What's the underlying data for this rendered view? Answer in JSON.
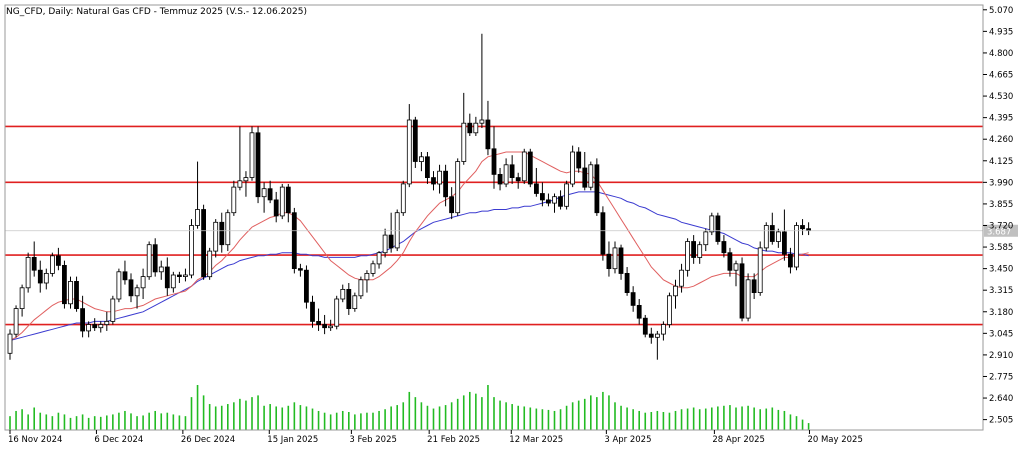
{
  "window_title": "NG_CFD, Daily:  Natural Gas CFD - Temmuz 2025 (V.S.- 12.06.2025)",
  "current_price_label": "3.687",
  "colors": {
    "background": "#ffffff",
    "frame": "#9a9a9a",
    "candle_body_up": "#ffffff",
    "candle_body_down": "#000000",
    "candle_outline": "#000000",
    "ma_fast": "#e06060",
    "ma_slow": "#3b3bd0",
    "levels": "#e02020",
    "volume": "#22bb22",
    "price_line": "#c8c8c8",
    "price_tag_bg": "#c0c0c0",
    "text": "#000000"
  },
  "chart_data": {
    "type": "candlestick",
    "symbol": "NG_CFD",
    "timeframe": "Daily",
    "ylim": [
      2.44,
      5.1
    ],
    "y_ticks": [
      "5.070",
      "4.935",
      "4.800",
      "4.665",
      "4.530",
      "4.395",
      "4.260",
      "4.125",
      "3.990",
      "3.855",
      "3.720",
      "3.585",
      "3.450",
      "3.315",
      "3.180",
      "3.045",
      "2.910",
      "2.775",
      "2.640",
      "2.505"
    ],
    "x_tick_labels": [
      {
        "label": "16 Nov 2024",
        "date": "2024-11-16"
      },
      {
        "label": "6 Dec 2024",
        "date": "2024-12-06"
      },
      {
        "label": "26 Dec 2024",
        "date": "2024-12-26"
      },
      {
        "label": "15 Jan 2025",
        "date": "2025-01-15"
      },
      {
        "label": "3 Feb 2025",
        "date": "2025-02-03"
      },
      {
        "label": "21 Feb 2025",
        "date": "2025-02-21"
      },
      {
        "label": "12 Mar 2025",
        "date": "2025-03-12"
      },
      {
        "label": "3 Apr 2025",
        "date": "2025-04-03"
      },
      {
        "label": "28 Apr 2025",
        "date": "2025-04-28"
      },
      {
        "label": "20 May 2025",
        "date": "2025-05-20"
      }
    ],
    "horizontal_levels": [
      4.34,
      3.99,
      3.535,
      3.1
    ],
    "current_price": 3.687,
    "ohlc": [
      [
        2.92,
        3.07,
        2.88,
        3.04
      ],
      [
        3.04,
        3.22,
        3.02,
        3.2
      ],
      [
        3.2,
        3.35,
        3.15,
        3.33
      ],
      [
        3.33,
        3.55,
        3.3,
        3.52
      ],
      [
        3.52,
        3.62,
        3.4,
        3.44
      ],
      [
        3.44,
        3.5,
        3.3,
        3.36
      ],
      [
        3.36,
        3.45,
        3.32,
        3.42
      ],
      [
        3.42,
        3.55,
        3.4,
        3.53
      ],
      [
        3.53,
        3.58,
        3.44,
        3.47
      ],
      [
        3.47,
        3.5,
        3.2,
        3.23
      ],
      [
        3.23,
        3.4,
        3.2,
        3.37
      ],
      [
        3.37,
        3.4,
        3.18,
        3.2
      ],
      [
        3.2,
        3.28,
        3.02,
        3.06
      ],
      [
        3.06,
        3.12,
        3.02,
        3.1
      ],
      [
        3.1,
        3.14,
        3.06,
        3.08
      ],
      [
        3.08,
        3.12,
        3.05,
        3.1
      ],
      [
        3.1,
        3.18,
        3.06,
        3.12
      ],
      [
        3.12,
        3.28,
        3.1,
        3.26
      ],
      [
        3.26,
        3.45,
        3.24,
        3.43
      ],
      [
        3.43,
        3.5,
        3.35,
        3.38
      ],
      [
        3.38,
        3.42,
        3.24,
        3.28
      ],
      [
        3.28,
        3.35,
        3.2,
        3.33
      ],
      [
        3.33,
        3.45,
        3.26,
        3.4
      ],
      [
        3.4,
        3.62,
        3.38,
        3.6
      ],
      [
        3.6,
        3.64,
        3.4,
        3.43
      ],
      [
        3.43,
        3.5,
        3.38,
        3.46
      ],
      [
        3.46,
        3.52,
        3.28,
        3.33
      ],
      [
        3.33,
        3.43,
        3.3,
        3.41
      ],
      [
        3.41,
        3.43,
        3.36,
        3.4
      ],
      [
        3.4,
        3.45,
        3.37,
        3.41
      ],
      [
        3.41,
        3.76,
        3.39,
        3.72
      ],
      [
        3.72,
        4.12,
        3.7,
        3.82
      ],
      [
        3.82,
        3.85,
        3.38,
        3.4
      ],
      [
        3.4,
        3.58,
        3.38,
        3.56
      ],
      [
        3.56,
        3.76,
        3.52,
        3.74
      ],
      [
        3.74,
        3.8,
        3.55,
        3.6
      ],
      [
        3.6,
        3.82,
        3.56,
        3.8
      ],
      [
        3.8,
        4.0,
        3.78,
        3.96
      ],
      [
        3.96,
        4.34,
        3.94,
        4.0
      ],
      [
        4.0,
        4.06,
        3.9,
        4.02
      ],
      [
        4.02,
        4.34,
        4.0,
        4.3
      ],
      [
        4.3,
        4.34,
        3.86,
        3.9
      ],
      [
        3.9,
        3.99,
        3.8,
        3.95
      ],
      [
        3.95,
        4.0,
        3.86,
        3.88
      ],
      [
        3.88,
        3.93,
        3.74,
        3.78
      ],
      [
        3.78,
        3.98,
        3.76,
        3.96
      ],
      [
        3.96,
        3.98,
        3.74,
        3.8
      ],
      [
        3.8,
        3.83,
        3.42,
        3.45
      ],
      [
        3.45,
        3.48,
        3.4,
        3.44
      ],
      [
        3.44,
        3.47,
        3.2,
        3.24
      ],
      [
        3.24,
        3.28,
        3.08,
        3.12
      ],
      [
        3.12,
        3.2,
        3.06,
        3.1
      ],
      [
        3.1,
        3.16,
        3.04,
        3.08
      ],
      [
        3.08,
        3.13,
        3.06,
        3.09
      ],
      [
        3.09,
        3.28,
        3.07,
        3.26
      ],
      [
        3.26,
        3.35,
        3.24,
        3.32
      ],
      [
        3.32,
        3.36,
        3.16,
        3.2
      ],
      [
        3.2,
        3.3,
        3.18,
        3.28
      ],
      [
        3.28,
        3.4,
        3.26,
        3.38
      ],
      [
        3.38,
        3.44,
        3.3,
        3.42
      ],
      [
        3.42,
        3.5,
        3.4,
        3.48
      ],
      [
        3.48,
        3.56,
        3.45,
        3.55
      ],
      [
        3.55,
        3.7,
        3.52,
        3.66
      ],
      [
        3.66,
        3.8,
        3.55,
        3.58
      ],
      [
        3.58,
        3.82,
        3.56,
        3.8
      ],
      [
        3.8,
        4.0,
        3.78,
        3.98
      ],
      [
        3.98,
        4.48,
        3.96,
        4.38
      ],
      [
        4.38,
        4.4,
        4.08,
        4.12
      ],
      [
        4.12,
        4.18,
        4.06,
        4.15
      ],
      [
        4.15,
        4.18,
        3.98,
        4.02
      ],
      [
        4.02,
        4.06,
        3.94,
        3.98
      ],
      [
        3.98,
        4.1,
        3.92,
        4.06
      ],
      [
        4.06,
        4.1,
        3.84,
        3.9
      ],
      [
        3.9,
        3.96,
        3.76,
        3.8
      ],
      [
        3.8,
        4.14,
        3.78,
        4.12
      ],
      [
        4.12,
        4.55,
        4.1,
        4.36
      ],
      [
        4.36,
        4.42,
        4.28,
        4.3
      ],
      [
        4.3,
        4.4,
        4.28,
        4.36
      ],
      [
        4.36,
        4.92,
        4.33,
        4.38
      ],
      [
        4.38,
        4.5,
        4.16,
        4.2
      ],
      [
        4.2,
        4.34,
        3.95,
        4.04
      ],
      [
        4.04,
        4.08,
        3.94,
        3.98
      ],
      [
        3.98,
        4.14,
        3.96,
        4.1
      ],
      [
        4.1,
        4.16,
        3.98,
        4.02
      ],
      [
        4.02,
        4.05,
        3.95,
        4.0
      ],
      [
        4.0,
        4.2,
        3.98,
        4.18
      ],
      [
        4.18,
        4.2,
        3.96,
        3.98
      ],
      [
        3.98,
        4.08,
        3.9,
        3.92
      ],
      [
        3.92,
        3.99,
        3.84,
        3.88
      ],
      [
        3.88,
        3.92,
        3.84,
        3.86
      ],
      [
        3.86,
        3.92,
        3.8,
        3.9
      ],
      [
        3.9,
        3.94,
        3.82,
        3.84
      ],
      [
        3.84,
        4.0,
        3.82,
        3.98
      ],
      [
        3.98,
        4.22,
        3.96,
        4.18
      ],
      [
        4.18,
        4.21,
        4.05,
        4.08
      ],
      [
        4.08,
        4.18,
        3.94,
        3.96
      ],
      [
        3.96,
        4.12,
        3.94,
        4.1
      ],
      [
        4.1,
        4.14,
        3.78,
        3.8
      ],
      [
        3.8,
        3.84,
        3.5,
        3.54
      ],
      [
        3.54,
        3.62,
        3.4,
        3.45
      ],
      [
        3.45,
        3.62,
        3.42,
        3.58
      ],
      [
        3.58,
        3.6,
        3.38,
        3.42
      ],
      [
        3.42,
        3.46,
        3.28,
        3.3
      ],
      [
        3.3,
        3.34,
        3.18,
        3.22
      ],
      [
        3.22,
        3.26,
        3.1,
        3.14
      ],
      [
        3.14,
        3.16,
        3.02,
        3.04
      ],
      [
        3.04,
        3.08,
        2.98,
        3.02
      ],
      [
        3.02,
        3.06,
        2.88,
        3.04
      ],
      [
        3.04,
        3.12,
        3.0,
        3.1
      ],
      [
        3.1,
        3.3,
        3.08,
        3.28
      ],
      [
        3.28,
        3.38,
        3.2,
        3.34
      ],
      [
        3.34,
        3.48,
        3.3,
        3.44
      ],
      [
        3.44,
        3.64,
        3.4,
        3.62
      ],
      [
        3.62,
        3.66,
        3.48,
        3.52
      ],
      [
        3.52,
        3.62,
        3.48,
        3.6
      ],
      [
        3.6,
        3.7,
        3.56,
        3.68
      ],
      [
        3.68,
        3.8,
        3.66,
        3.78
      ],
      [
        3.78,
        3.8,
        3.6,
        3.62
      ],
      [
        3.62,
        3.66,
        3.52,
        3.55
      ],
      [
        3.55,
        3.58,
        3.4,
        3.44
      ],
      [
        3.44,
        3.5,
        3.34,
        3.48
      ],
      [
        3.48,
        3.52,
        3.12,
        3.14
      ],
      [
        3.14,
        3.42,
        3.12,
        3.38
      ],
      [
        3.38,
        3.42,
        3.26,
        3.3
      ],
      [
        3.3,
        3.62,
        3.28,
        3.58
      ],
      [
        3.58,
        3.74,
        3.56,
        3.72
      ],
      [
        3.72,
        3.8,
        3.6,
        3.62
      ],
      [
        3.62,
        3.7,
        3.58,
        3.68
      ],
      [
        3.68,
        3.82,
        3.5,
        3.54
      ],
      [
        3.54,
        3.58,
        3.42,
        3.46
      ],
      [
        3.46,
        3.74,
        3.44,
        3.72
      ],
      [
        3.72,
        3.76,
        3.66,
        3.7
      ],
      [
        3.7,
        3.74,
        3.66,
        3.69
      ]
    ],
    "ma_fast_values": [
      3.0,
      3.02,
      3.05,
      3.09,
      3.13,
      3.16,
      3.19,
      3.22,
      3.24,
      3.25,
      3.26,
      3.26,
      3.24,
      3.22,
      3.2,
      3.19,
      3.18,
      3.18,
      3.19,
      3.2,
      3.2,
      3.21,
      3.22,
      3.24,
      3.26,
      3.27,
      3.28,
      3.29,
      3.3,
      3.31,
      3.34,
      3.38,
      3.4,
      3.43,
      3.47,
      3.5,
      3.54,
      3.58,
      3.63,
      3.67,
      3.71,
      3.73,
      3.75,
      3.77,
      3.78,
      3.8,
      3.8,
      3.78,
      3.75,
      3.7,
      3.65,
      3.6,
      3.55,
      3.5,
      3.47,
      3.44,
      3.41,
      3.39,
      3.38,
      3.38,
      3.38,
      3.4,
      3.43,
      3.46,
      3.5,
      3.55,
      3.62,
      3.68,
      3.73,
      3.78,
      3.82,
      3.86,
      3.88,
      3.9,
      3.93,
      3.98,
      4.02,
      4.06,
      4.12,
      4.15,
      4.16,
      4.17,
      4.18,
      4.18,
      4.18,
      4.18,
      4.16,
      4.14,
      4.12,
      4.1,
      4.08,
      4.06,
      4.05,
      4.06,
      4.06,
      4.05,
      4.04,
      4.0,
      3.94,
      3.88,
      3.82,
      3.76,
      3.7,
      3.64,
      3.58,
      3.52,
      3.46,
      3.42,
      3.38,
      3.36,
      3.34,
      3.33,
      3.33,
      3.34,
      3.36,
      3.38,
      3.4,
      3.41,
      3.42,
      3.42,
      3.42,
      3.4,
      3.4,
      3.4,
      3.43,
      3.46,
      3.48,
      3.5,
      3.52,
      3.52,
      3.53,
      3.54,
      3.55
    ],
    "ma_slow_values": [
      3.0,
      3.01,
      3.02,
      3.03,
      3.04,
      3.05,
      3.06,
      3.07,
      3.08,
      3.09,
      3.1,
      3.11,
      3.11,
      3.11,
      3.12,
      3.12,
      3.12,
      3.13,
      3.14,
      3.15,
      3.16,
      3.17,
      3.18,
      3.2,
      3.22,
      3.24,
      3.26,
      3.28,
      3.3,
      3.32,
      3.34,
      3.37,
      3.39,
      3.41,
      3.43,
      3.45,
      3.47,
      3.48,
      3.5,
      3.51,
      3.52,
      3.53,
      3.53,
      3.54,
      3.54,
      3.55,
      3.55,
      3.55,
      3.54,
      3.54,
      3.53,
      3.53,
      3.52,
      3.52,
      3.52,
      3.52,
      3.52,
      3.52,
      3.53,
      3.53,
      3.54,
      3.55,
      3.56,
      3.58,
      3.6,
      3.62,
      3.65,
      3.68,
      3.7,
      3.72,
      3.74,
      3.75,
      3.76,
      3.77,
      3.78,
      3.79,
      3.8,
      3.8,
      3.81,
      3.81,
      3.82,
      3.82,
      3.82,
      3.83,
      3.83,
      3.84,
      3.84,
      3.85,
      3.86,
      3.87,
      3.88,
      3.9,
      3.91,
      3.92,
      3.93,
      3.93,
      3.93,
      3.93,
      3.92,
      3.91,
      3.9,
      3.89,
      3.87,
      3.86,
      3.84,
      3.83,
      3.81,
      3.79,
      3.78,
      3.77,
      3.76,
      3.74,
      3.73,
      3.72,
      3.71,
      3.7,
      3.69,
      3.68,
      3.67,
      3.65,
      3.63,
      3.61,
      3.6,
      3.58,
      3.57,
      3.56,
      3.56,
      3.55,
      3.55,
      3.55,
      3.54,
      3.54,
      3.53
    ],
    "volume": [
      40,
      55,
      60,
      45,
      65,
      50,
      45,
      40,
      50,
      45,
      35,
      40,
      45,
      35,
      40,
      38,
      42,
      45,
      50,
      55,
      48,
      40,
      42,
      50,
      55,
      48,
      50,
      45,
      42,
      40,
      95,
      130,
      100,
      75,
      68,
      70,
      75,
      80,
      90,
      85,
      95,
      100,
      70,
      75,
      68,
      65,
      70,
      80,
      72,
      68,
      62,
      55,
      50,
      45,
      50,
      55,
      52,
      45,
      48,
      50,
      50,
      55,
      60,
      68,
      72,
      80,
      110,
      95,
      80,
      70,
      62,
      68,
      72,
      80,
      90,
      100,
      110,
      105,
      95,
      130,
      95,
      85,
      80,
      75,
      70,
      68,
      65,
      62,
      60,
      58,
      55,
      60,
      70,
      80,
      85,
      90,
      100,
      95,
      110,
      100,
      80,
      70,
      65,
      60,
      55,
      50,
      52,
      55,
      52,
      50,
      55,
      60,
      62,
      65,
      60,
      62,
      65,
      68,
      70,
      72,
      65,
      68,
      70,
      65,
      60,
      62,
      65,
      58,
      55,
      45,
      40,
      30,
      20
    ]
  }
}
